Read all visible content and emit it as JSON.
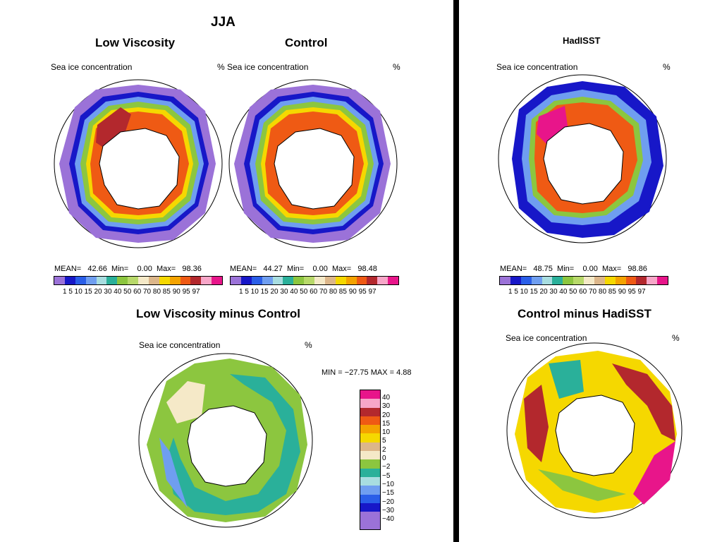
{
  "header": {
    "season": "JJA"
  },
  "panels": {
    "low_viscosity": {
      "title": "Low Viscosity",
      "label": "Sea ice concentration",
      "unit": "%",
      "mean_label": "MEAN=",
      "mean": "42.66",
      "min_label": "Min=",
      "min": "0.00",
      "max_label": "Max=",
      "max": "98.36"
    },
    "control": {
      "title": "Control",
      "label": "Sea ice concentration",
      "unit": "%",
      "mean_label": "MEAN=",
      "mean": "44.27",
      "min_label": "Min=",
      "min": "0.00",
      "max_label": "Max=",
      "max": "98.48"
    },
    "hadisst": {
      "title": "HadISST",
      "label": "Sea ice concentration",
      "unit": "%",
      "mean_label": "MEAN=",
      "mean": "48.75",
      "min_label": "Min=",
      "min": "0.00",
      "max_label": "Max=",
      "max": "98.86"
    },
    "diff_lv_ctrl": {
      "title": "Low Viscosity minus Control",
      "label": "Sea ice concentration",
      "unit": "%",
      "minmax": "MIN = −27.75 MAX =    4.88"
    },
    "diff_ctrl_had": {
      "title": "Control minus HadiSST",
      "label": "Sea ice concentration",
      "unit": "%"
    }
  },
  "colorbar": {
    "ticks": "1  5 10 15 20 30 40 50 60 70 80 85 90 95 97",
    "colors": [
      "#9b72d8",
      "#1717c8",
      "#2a5ee8",
      "#6f9ef0",
      "#a8dde0",
      "#2ab09a",
      "#8cc63f",
      "#b8d96a",
      "#f5e9c8",
      "#dcb68a",
      "#f5d800",
      "#f4a300",
      "#ef5a14",
      "#b3282d",
      "#f7a6c8",
      "#e8158a"
    ]
  },
  "diff_legend": {
    "labels": [
      "40",
      "30",
      "20",
      "15",
      "10",
      "5",
      "2",
      "0",
      "−2",
      "−5",
      "−10",
      "−15",
      "−20",
      "−30",
      "−40"
    ],
    "colors": [
      "#e8158a",
      "#f7a6c8",
      "#b3282d",
      "#ef5a14",
      "#f4a300",
      "#f5d800",
      "#dcb68a",
      "#f5e9c8",
      "#8cc63f",
      "#2ab09a",
      "#a8dde0",
      "#6f9ef0",
      "#2a5ee8",
      "#1717c8",
      "#9b72d8"
    ]
  }
}
